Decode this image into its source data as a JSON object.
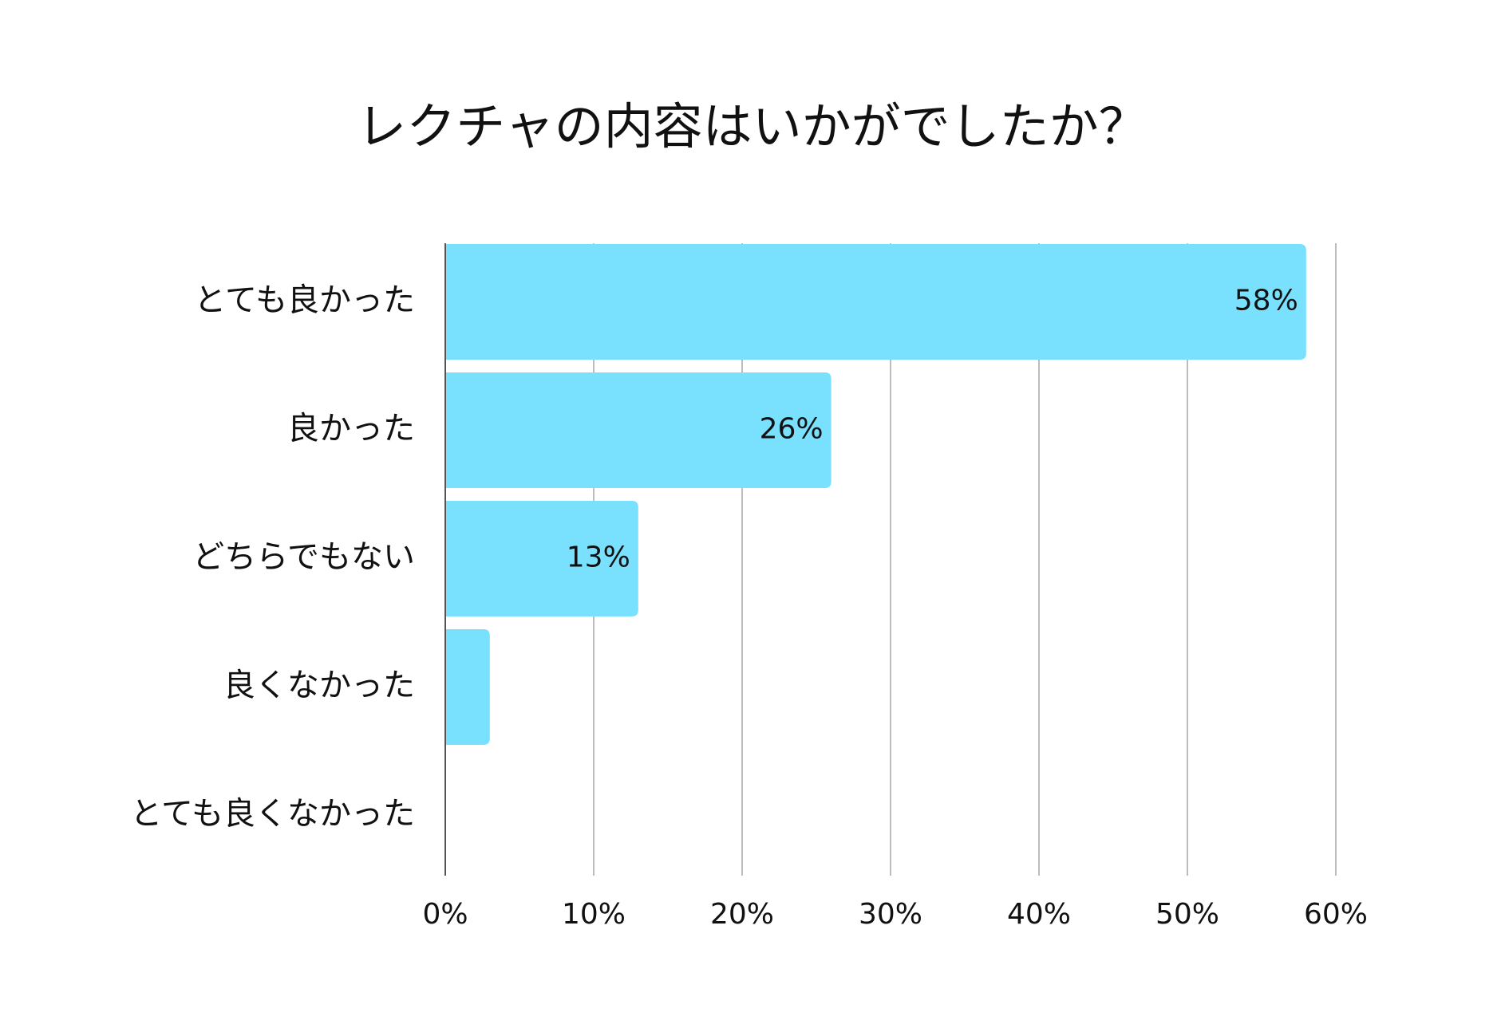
{
  "chart_data": {
    "type": "bar",
    "orientation": "horizontal",
    "title": "レクチャの内容はいかがでしたか？",
    "categories": [
      "とても良かった",
      "良かった",
      "どちらでもない",
      "良くなかった",
      "とても良くなかった"
    ],
    "values": [
      58,
      26,
      13,
      3,
      0
    ],
    "data_labels": [
      "58%",
      "26%",
      "13%",
      "",
      ""
    ],
    "xlim": [
      0,
      60
    ],
    "xticks": [
      0,
      10,
      20,
      30,
      40,
      50,
      60
    ],
    "xtick_labels": [
      "0%",
      "10%",
      "20%",
      "30%",
      "40%",
      "50%",
      "60%"
    ],
    "xlabel": "",
    "ylabel": "",
    "grid": true,
    "legend": "none",
    "colors": {
      "bar": "#79e0fe",
      "grid": "#bdbdbd",
      "axis": "#555555",
      "text": "#111111"
    }
  }
}
